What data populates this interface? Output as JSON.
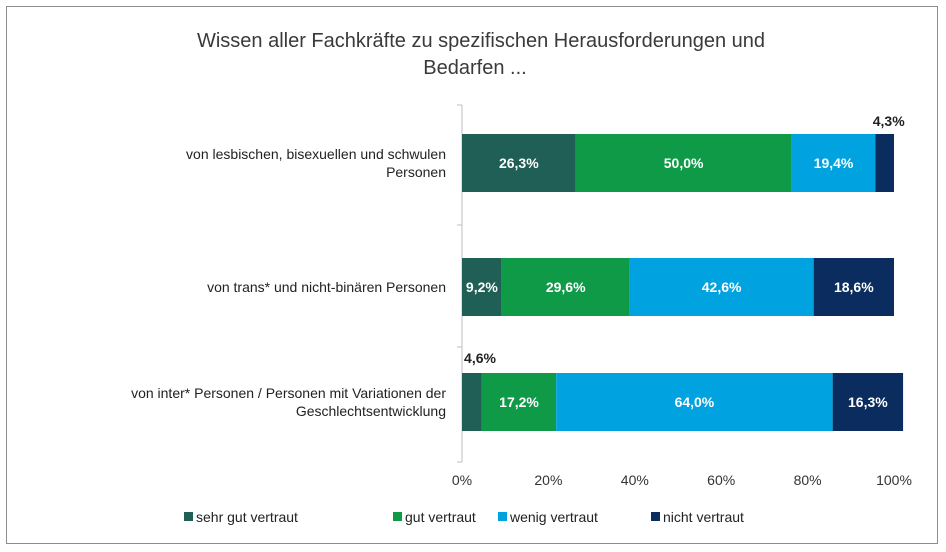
{
  "chart_data": {
    "type": "bar",
    "orientation": "horizontal",
    "stacked": true,
    "title": "Wissen aller Fachkräfte zu spezifischen Herausforderungen  und Bedarfen ...",
    "title_lines": [
      "Wissen aller Fachkräfte zu spezifischen Herausforderungen  und",
      "Bedarfen ..."
    ],
    "categories": [
      [
        "von lesbischen, bisexuellen und schwulen",
        "Personen"
      ],
      [
        "von trans* und nicht-binären Personen"
      ],
      [
        "von inter* Personen / Personen mit Variationen der",
        "Geschlechtsentwicklung"
      ]
    ],
    "series": [
      {
        "name": "sehr gut vertraut",
        "color": "#1f5f55",
        "values": [
          26.3,
          9.2,
          4.6
        ],
        "labels": [
          "26,3%",
          "9,2%",
          "4,6%"
        ]
      },
      {
        "name": "gut vertraut",
        "color": "#0f9a47",
        "values": [
          50.0,
          29.6,
          17.2
        ],
        "labels": [
          "50,0%",
          "29,6%",
          "17,2%"
        ]
      },
      {
        "name": "wenig vertraut",
        "color": "#00a3e0",
        "values": [
          19.4,
          42.6,
          64.0
        ],
        "labels": [
          "19,4%",
          "42,6%",
          "64,0%"
        ]
      },
      {
        "name": "nicht vertraut",
        "color": "#0b2c5e",
        "values": [
          4.3,
          18.6,
          16.3
        ],
        "labels": [
          "4,3%",
          "18,6%",
          "16,3%"
        ]
      }
    ],
    "xlim": [
      0,
      100
    ],
    "x_ticks": [
      "0%",
      "20%",
      "40%",
      "60%",
      "80%",
      "100%"
    ],
    "grid": false,
    "legend_position": "bottom"
  }
}
